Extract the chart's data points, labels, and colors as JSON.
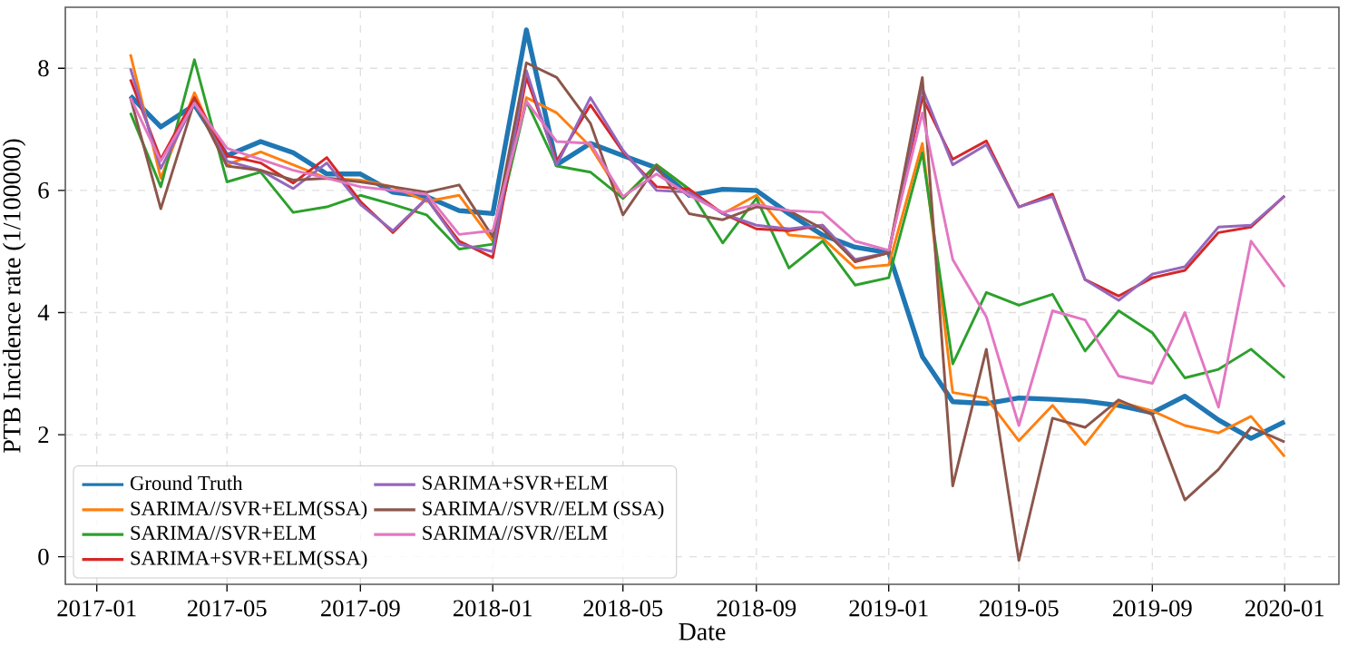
{
  "chart_data": {
    "type": "line",
    "xlabel": "Date",
    "ylabel": "PTB Incidence rate (1/100000)",
    "x": [
      "2017-02",
      "2017-03",
      "2017-04",
      "2017-05",
      "2017-06",
      "2017-07",
      "2017-08",
      "2017-09",
      "2017-10",
      "2017-11",
      "2017-12",
      "2018-01",
      "2018-02",
      "2018-03",
      "2018-04",
      "2018-05",
      "2018-06",
      "2018-07",
      "2018-08",
      "2018-09",
      "2018-10",
      "2018-11",
      "2018-12",
      "2019-01",
      "2019-02",
      "2019-03",
      "2019-04",
      "2019-05",
      "2019-06",
      "2019-07",
      "2019-08",
      "2019-09",
      "2019-10",
      "2019-11",
      "2019-12",
      "2020-01"
    ],
    "series": [
      {
        "name": "Ground Truth",
        "color": "#1f77b4",
        "values": [
          7.55,
          7.04,
          7.4,
          6.57,
          6.8,
          6.62,
          6.27,
          6.27,
          5.97,
          5.9,
          5.67,
          5.62,
          8.63,
          6.42,
          6.77,
          6.57,
          6.37,
          5.92,
          6.02,
          6.0,
          5.62,
          5.27,
          5.07,
          4.98,
          3.28,
          2.54,
          2.51,
          2.6,
          2.58,
          2.55,
          2.48,
          2.36,
          2.63,
          2.24,
          1.94,
          2.21
        ]
      },
      {
        "name": "SARIMA//SVR+ELM(SSA)",
        "color": "#ff7f0e",
        "values": [
          8.23,
          6.2,
          7.6,
          6.42,
          6.63,
          6.42,
          6.2,
          6.17,
          6.06,
          5.82,
          5.92,
          5.17,
          7.52,
          7.27,
          6.72,
          5.87,
          6.42,
          6.02,
          5.62,
          5.92,
          5.27,
          5.22,
          4.73,
          4.78,
          6.77,
          2.69,
          2.6,
          1.9,
          2.48,
          1.84,
          2.54,
          2.39,
          2.15,
          2.03,
          2.3,
          1.64
        ]
      },
      {
        "name": "SARIMA//SVR+ELM",
        "color": "#2ca02c",
        "values": [
          7.27,
          6.06,
          8.14,
          6.14,
          6.3,
          5.64,
          5.73,
          5.92,
          5.77,
          5.6,
          5.04,
          5.12,
          7.46,
          6.4,
          6.3,
          5.87,
          6.42,
          6.02,
          5.14,
          5.87,
          4.73,
          5.17,
          4.45,
          4.57,
          6.62,
          3.16,
          4.33,
          4.12,
          4.3,
          3.37,
          4.03,
          3.67,
          2.93,
          3.07,
          3.4,
          2.93
        ]
      },
      {
        "name": "SARIMA+SVR+ELM(SSA)",
        "color": "#d62728",
        "values": [
          7.82,
          6.51,
          7.52,
          6.57,
          6.45,
          6.12,
          6.54,
          5.82,
          5.31,
          5.87,
          5.17,
          4.9,
          7.85,
          6.48,
          7.4,
          6.63,
          6.06,
          6.02,
          5.62,
          5.37,
          5.34,
          5.43,
          4.83,
          4.98,
          7.52,
          6.51,
          6.81,
          5.73,
          5.94,
          4.54,
          4.27,
          4.57,
          4.69,
          5.31,
          5.4,
          5.91
        ]
      },
      {
        "name": "SARIMA+SVR+ELM",
        "color": "#9467bd",
        "values": [
          8.0,
          6.36,
          7.43,
          6.48,
          6.33,
          6.03,
          6.45,
          5.77,
          5.34,
          5.87,
          5.12,
          5.0,
          7.96,
          6.42,
          7.52,
          6.66,
          6.0,
          5.97,
          5.62,
          5.43,
          5.37,
          5.43,
          4.87,
          4.98,
          7.67,
          6.42,
          6.75,
          5.73,
          5.9,
          4.54,
          4.2,
          4.63,
          4.75,
          5.4,
          5.43,
          5.91
        ]
      },
      {
        "name": "SARIMA//SVR//ELM (SSA)",
        "color": "#8c564b",
        "values": [
          7.52,
          5.7,
          7.46,
          6.4,
          6.33,
          6.17,
          6.2,
          6.14,
          6.06,
          5.97,
          6.09,
          5.24,
          8.09,
          7.85,
          7.1,
          5.6,
          6.4,
          5.62,
          5.52,
          5.73,
          5.67,
          5.37,
          4.84,
          4.98,
          7.85,
          1.16,
          3.4,
          -0.06,
          2.27,
          2.12,
          2.57,
          2.33,
          0.93,
          1.43,
          2.12,
          1.88
        ]
      },
      {
        "name": "SARIMA//SVR//ELM",
        "color": "#e377c2",
        "values": [
          7.52,
          6.48,
          7.43,
          6.69,
          6.51,
          6.33,
          6.2,
          6.06,
          6.0,
          5.94,
          5.28,
          5.34,
          7.46,
          6.8,
          6.77,
          5.9,
          6.27,
          5.92,
          5.64,
          5.77,
          5.67,
          5.64,
          5.17,
          5.02,
          7.27,
          4.87,
          3.93,
          2.15,
          4.03,
          3.88,
          2.96,
          2.84,
          4.0,
          2.45,
          5.17,
          4.42
        ]
      }
    ],
    "xlim": [
      "2016-12-03",
      "2020-02-20"
    ],
    "ylim": [
      -0.45,
      9.0
    ],
    "xticks": [
      "2017-01",
      "2017-05",
      "2017-09",
      "2018-01",
      "2018-05",
      "2018-09",
      "2019-01",
      "2019-05",
      "2019-09",
      "2020-01"
    ],
    "yticks": [
      0,
      2,
      4,
      6,
      8
    ],
    "grid": true,
    "legend": "bottom left"
  }
}
